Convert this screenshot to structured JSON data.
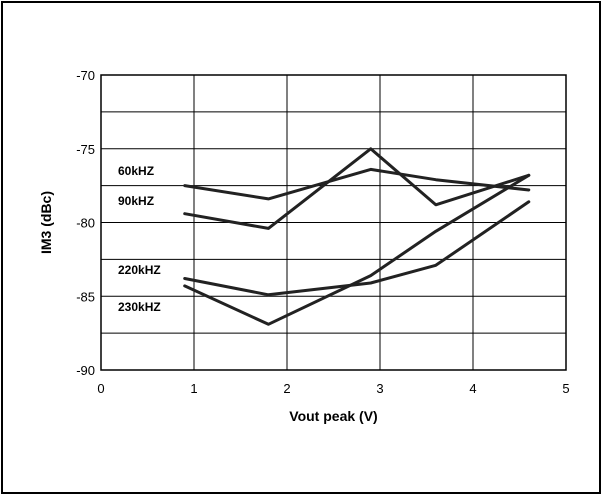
{
  "chart_data": {
    "type": "line",
    "title": "",
    "xlabel": "Vout peak (V)",
    "ylabel": "IM3 (dBc)",
    "xlim": [
      0,
      5
    ],
    "ylim": [
      -90,
      -70
    ],
    "xticks": [
      0,
      1,
      2,
      3,
      4,
      5
    ],
    "yticks": [
      -90,
      -85,
      -80,
      -75,
      -70
    ],
    "x_tick_labels": [
      "0",
      "1",
      "2",
      "3",
      "4",
      "5"
    ],
    "y_tick_labels": [
      "-90",
      "-85",
      "-80",
      "-75",
      "-70"
    ],
    "grid": true,
    "legend": "inline labels left",
    "series": [
      {
        "name": "60kHZ",
        "x": [
          0.9,
          1.8,
          2.9,
          3.6,
          4.6
        ],
        "y": [
          -77.5,
          -78.4,
          -76.4,
          -77.1,
          -77.8
        ]
      },
      {
        "name": "90kHZ",
        "x": [
          0.9,
          1.8,
          2.9,
          3.6,
          4.6
        ],
        "y": [
          -79.4,
          -80.4,
          -75.0,
          -78.8,
          -76.8
        ]
      },
      {
        "name": "220kHZ",
        "x": [
          0.9,
          1.8,
          2.9,
          3.6,
          4.6
        ],
        "y": [
          -83.8,
          -84.9,
          -84.1,
          -82.9,
          -78.6
        ]
      },
      {
        "name": "230kHZ",
        "x": [
          0.9,
          1.8,
          2.9,
          3.6,
          4.6
        ],
        "y": [
          -84.3,
          -86.9,
          -83.6,
          -80.6,
          -76.8
        ]
      }
    ]
  }
}
